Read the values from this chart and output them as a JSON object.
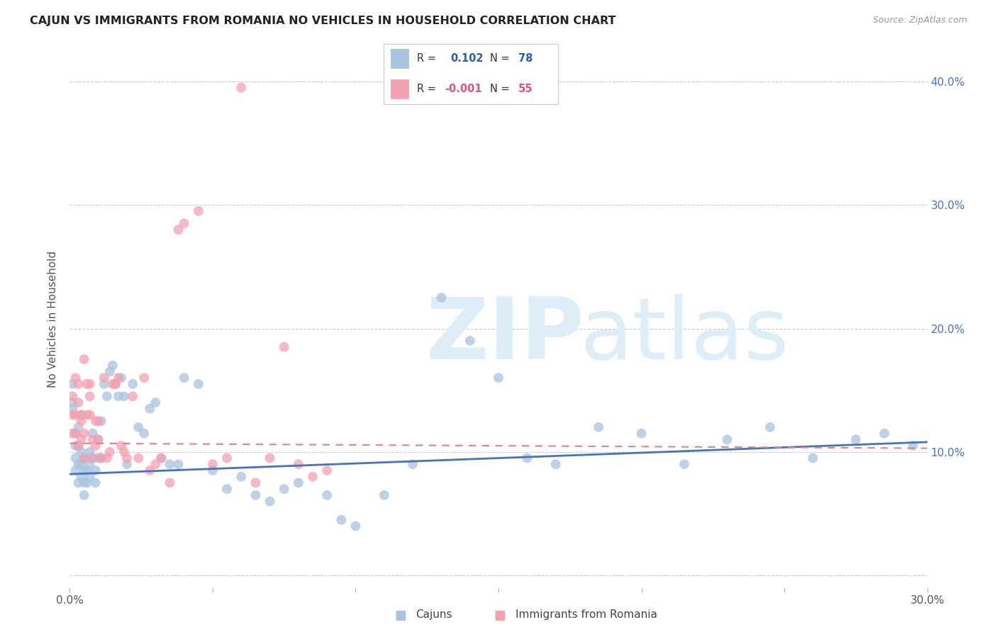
{
  "title": "CAJUN VS IMMIGRANTS FROM ROMANIA NO VEHICLES IN HOUSEHOLD CORRELATION CHART",
  "source": "Source: ZipAtlas.com",
  "ylabel": "No Vehicles in Household",
  "xlim": [
    0.0,
    0.3
  ],
  "ylim": [
    -0.01,
    0.425
  ],
  "cajun_R": 0.102,
  "cajun_N": 78,
  "romania_R": -0.001,
  "romania_N": 55,
  "cajun_color": "#a8c4e0",
  "romania_color": "#f4a0b0",
  "cajun_line_color": "#4472c4",
  "romania_line_color": "#f4a0b0",
  "legend_text_color": "#2a5cb8",
  "romania_legend_text_color": "#e05080",
  "watermark_color": "#ddeef8",
  "cajun_x": [
    0.001,
    0.001,
    0.001,
    0.002,
    0.002,
    0.002,
    0.002,
    0.003,
    0.003,
    0.003,
    0.003,
    0.004,
    0.004,
    0.004,
    0.004,
    0.005,
    0.005,
    0.005,
    0.005,
    0.006,
    0.006,
    0.006,
    0.007,
    0.007,
    0.007,
    0.008,
    0.008,
    0.009,
    0.009,
    0.01,
    0.01,
    0.011,
    0.011,
    0.012,
    0.013,
    0.014,
    0.015,
    0.016,
    0.017,
    0.018,
    0.019,
    0.02,
    0.022,
    0.024,
    0.026,
    0.028,
    0.03,
    0.032,
    0.035,
    0.038,
    0.04,
    0.045,
    0.05,
    0.055,
    0.06,
    0.065,
    0.07,
    0.075,
    0.08,
    0.09,
    0.095,
    0.1,
    0.11,
    0.12,
    0.13,
    0.14,
    0.15,
    0.16,
    0.17,
    0.185,
    0.2,
    0.215,
    0.23,
    0.245,
    0.26,
    0.275,
    0.285,
    0.295
  ],
  "cajun_y": [
    0.135,
    0.14,
    0.155,
    0.085,
    0.095,
    0.105,
    0.115,
    0.075,
    0.09,
    0.105,
    0.12,
    0.08,
    0.09,
    0.1,
    0.13,
    0.085,
    0.095,
    0.065,
    0.075,
    0.085,
    0.095,
    0.075,
    0.09,
    0.08,
    0.1,
    0.095,
    0.115,
    0.085,
    0.075,
    0.11,
    0.095,
    0.125,
    0.095,
    0.155,
    0.145,
    0.165,
    0.17,
    0.155,
    0.145,
    0.16,
    0.145,
    0.09,
    0.155,
    0.12,
    0.115,
    0.135,
    0.14,
    0.095,
    0.09,
    0.09,
    0.16,
    0.155,
    0.085,
    0.07,
    0.08,
    0.065,
    0.06,
    0.07,
    0.075,
    0.065,
    0.045,
    0.04,
    0.065,
    0.09,
    0.225,
    0.19,
    0.16,
    0.095,
    0.09,
    0.12,
    0.115,
    0.09,
    0.11,
    0.12,
    0.095,
    0.11,
    0.115,
    0.105
  ],
  "romania_x": [
    0.001,
    0.001,
    0.001,
    0.002,
    0.002,
    0.002,
    0.003,
    0.003,
    0.003,
    0.004,
    0.004,
    0.004,
    0.005,
    0.005,
    0.005,
    0.006,
    0.006,
    0.007,
    0.007,
    0.007,
    0.008,
    0.008,
    0.009,
    0.009,
    0.01,
    0.01,
    0.011,
    0.012,
    0.013,
    0.014,
    0.015,
    0.016,
    0.017,
    0.018,
    0.019,
    0.02,
    0.022,
    0.024,
    0.026,
    0.028,
    0.03,
    0.032,
    0.035,
    0.038,
    0.04,
    0.045,
    0.05,
    0.055,
    0.06,
    0.065,
    0.07,
    0.075,
    0.08,
    0.085,
    0.09
  ],
  "romania_y": [
    0.115,
    0.13,
    0.145,
    0.16,
    0.13,
    0.115,
    0.155,
    0.14,
    0.105,
    0.125,
    0.11,
    0.13,
    0.095,
    0.115,
    0.175,
    0.13,
    0.155,
    0.155,
    0.145,
    0.13,
    0.11,
    0.095,
    0.105,
    0.125,
    0.11,
    0.125,
    0.095,
    0.16,
    0.095,
    0.1,
    0.155,
    0.155,
    0.16,
    0.105,
    0.1,
    0.095,
    0.145,
    0.095,
    0.16,
    0.085,
    0.09,
    0.095,
    0.075,
    0.28,
    0.285,
    0.295,
    0.09,
    0.095,
    0.395,
    0.075,
    0.095,
    0.185,
    0.09,
    0.08,
    0.085
  ],
  "cajun_trend_x0": 0.0,
  "cajun_trend_x1": 0.3,
  "cajun_trend_y0": 0.082,
  "cajun_trend_y1": 0.108,
  "romania_trend_x0": 0.0,
  "romania_trend_x1": 0.3,
  "romania_trend_y0": 0.107,
  "romania_trend_y1": 0.103
}
